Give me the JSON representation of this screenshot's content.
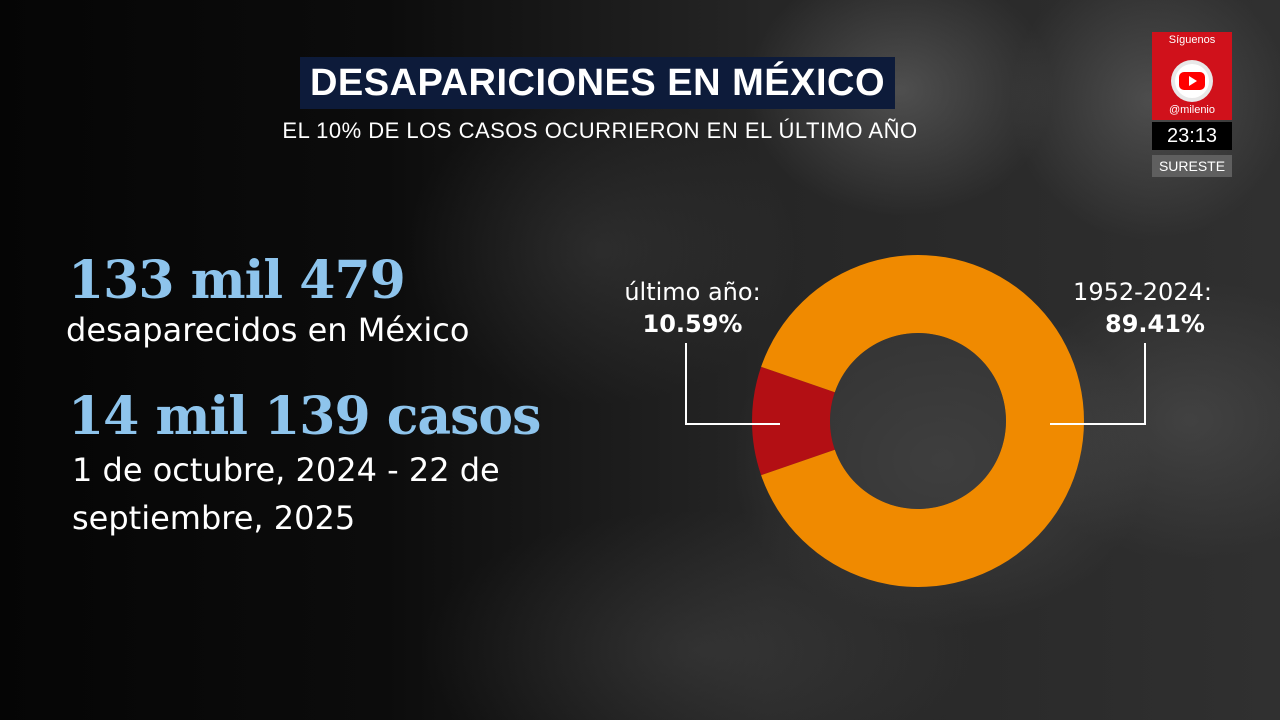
{
  "title": "DESAPARICIONES EN MÉXICO",
  "subtitle": "EL 10% DE LOS CASOS OCURRIERON EN EL ÚLTIMO AÑO",
  "stats": [
    {
      "value": "133 mil 479",
      "label": "desaparecidos en México"
    },
    {
      "value": "14 mil 139 casos",
      "label": "1 de octubre, 2024 - 22 de septiembre, 2025"
    }
  ],
  "overlay": {
    "follow_text": "Síguenos",
    "handle": "@milenio",
    "time": "23:13",
    "region": "SURESTE",
    "icon": "youtube-icon"
  },
  "colors": {
    "accent_blue": "#8ec4ec",
    "title_bg": "#0d1b3a",
    "ultimo_ano": "#b30f14",
    "historico": "#f08a00"
  },
  "chart_data": {
    "type": "pie",
    "donut": true,
    "slices": [
      {
        "label": "último año:",
        "value": 10.59,
        "value_text": "10.59%",
        "color": "#b30f14"
      },
      {
        "label": "1952-2024:",
        "value": 89.41,
        "value_text": "89.41%",
        "color": "#f08a00"
      }
    ]
  }
}
